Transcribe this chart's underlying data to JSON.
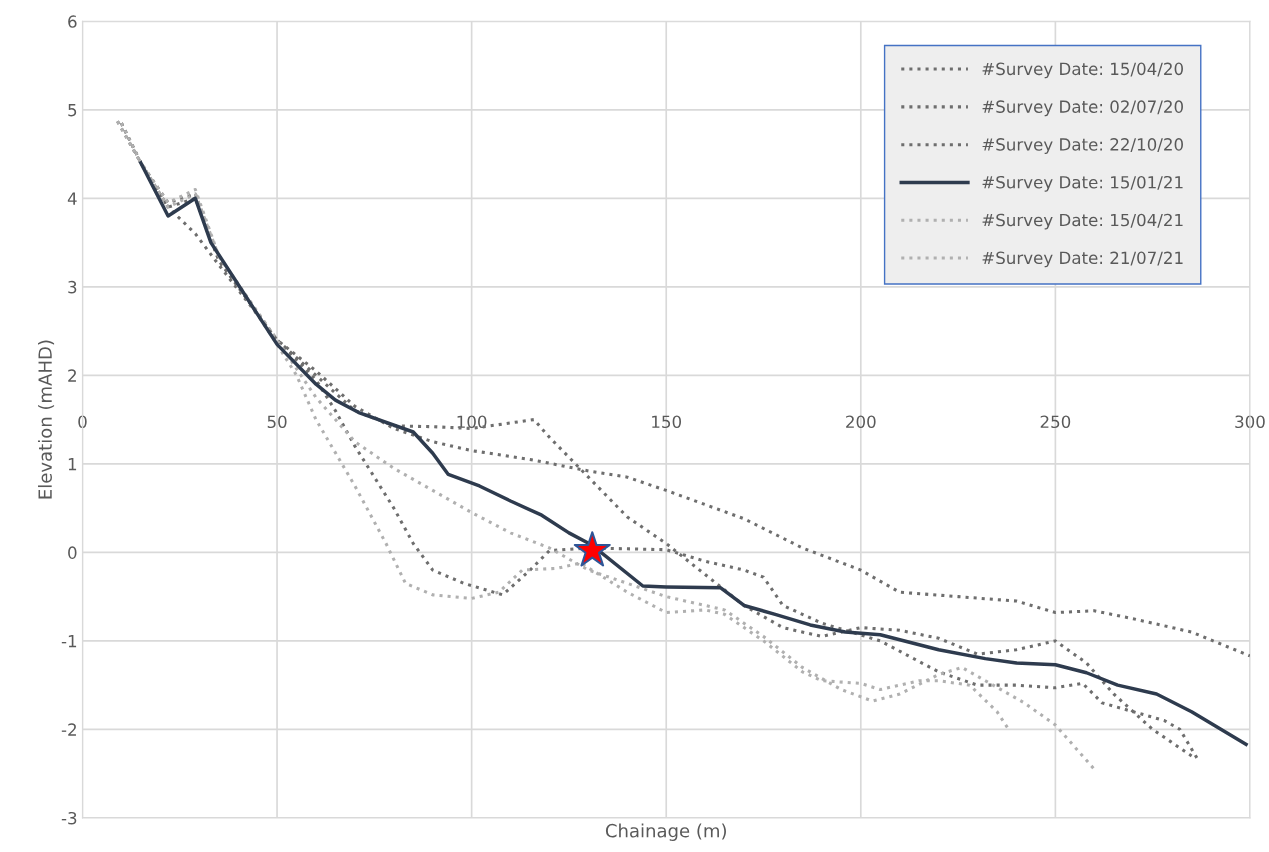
{
  "chart_data": {
    "type": "line",
    "xlabel": "Chainage (m)",
    "ylabel": "Elevation (mAHD)",
    "xlim": [
      0,
      300
    ],
    "xticks": [
      0,
      50,
      100,
      150,
      200,
      250,
      300
    ],
    "ylim": [
      -3,
      6
    ],
    "yticks": [
      -3,
      -2,
      -1,
      0,
      1,
      2,
      3,
      4,
      5,
      6
    ],
    "grid": true,
    "legend": "top right",
    "marker": "none",
    "series": [
      {
        "name": "#Survey Date: 15/04/20",
        "color": "#6e6e6e",
        "line_style": "dotted",
        "x": [
          9,
          15,
          22,
          29,
          35,
          50,
          60,
          70,
          80,
          90,
          100,
          115,
          130,
          140,
          150,
          170,
          185,
          200,
          210,
          225,
          240,
          250,
          260,
          270,
          285,
          300
        ],
        "values": [
          4.87,
          4.4,
          3.9,
          3.6,
          3.25,
          2.4,
          2.05,
          1.65,
          1.4,
          1.25,
          1.15,
          1.05,
          0.92,
          0.85,
          0.7,
          0.38,
          0.05,
          -0.2,
          -0.45,
          -0.5,
          -0.55,
          -0.68,
          -0.66,
          -0.75,
          -0.9,
          -1.17
        ]
      },
      {
        "name": "#Survey Date: 02/07/20",
        "color": "#6e6e6e",
        "line_style": "dotted",
        "x": [
          10,
          15,
          22,
          29,
          35,
          50,
          60,
          70,
          80,
          90,
          100,
          108,
          116,
          120,
          130,
          140,
          150,
          160,
          170,
          180,
          190,
          200,
          210,
          220,
          230,
          240,
          250,
          258,
          265,
          275,
          285
        ],
        "values": [
          4.85,
          4.4,
          3.95,
          4.05,
          3.3,
          2.4,
          2.0,
          1.6,
          1.43,
          1.42,
          1.4,
          1.45,
          1.5,
          1.3,
          0.85,
          0.4,
          0.1,
          -0.25,
          -0.6,
          -0.85,
          -0.95,
          -0.85,
          -0.88,
          -0.97,
          -1.15,
          -1.1,
          -1.0,
          -1.25,
          -1.6,
          -2.0,
          -2.3
        ]
      },
      {
        "name": "#Survey Date: 22/10/20",
        "color": "#6e6e6e",
        "line_style": "dotted",
        "x": [
          10,
          15,
          22,
          29,
          35,
          50,
          60,
          65,
          70,
          80,
          85,
          90,
          98,
          108,
          115,
          120,
          130,
          150,
          160,
          170,
          175,
          180,
          190,
          205,
          220,
          230,
          240,
          250,
          257,
          262,
          270,
          278,
          282,
          287
        ],
        "values": [
          4.85,
          4.4,
          3.9,
          4.0,
          3.3,
          2.4,
          1.95,
          1.6,
          1.2,
          0.5,
          0.1,
          -0.2,
          -0.35,
          -0.48,
          -0.2,
          0.02,
          0.05,
          0.03,
          -0.1,
          -0.2,
          -0.28,
          -0.6,
          -0.8,
          -1.0,
          -1.35,
          -1.5,
          -1.5,
          -1.53,
          -1.48,
          -1.7,
          -1.8,
          -1.9,
          -2.0,
          -2.37
        ]
      },
      {
        "name": "#Survey Date: 15/01/21",
        "color": "#2e3b4e",
        "line_style": "solid",
        "x": [
          15,
          22,
          29,
          33,
          50,
          60,
          65,
          71,
          85,
          90,
          94,
          102,
          110,
          118,
          125,
          131,
          144,
          150,
          164,
          170,
          178,
          187,
          196,
          205,
          220,
          232,
          240,
          250,
          258,
          266,
          276,
          285,
          299
        ],
        "values": [
          4.4,
          3.8,
          4.0,
          3.5,
          2.35,
          1.9,
          1.72,
          1.58,
          1.36,
          1.12,
          0.88,
          0.75,
          0.58,
          0.42,
          0.22,
          0.08,
          -0.38,
          -0.39,
          -0.4,
          -0.6,
          -0.7,
          -0.82,
          -0.9,
          -0.93,
          -1.1,
          -1.2,
          -1.25,
          -1.27,
          -1.36,
          -1.5,
          -1.6,
          -1.8,
          -2.17
        ]
      },
      {
        "name": "#Survey Date: 15/04/21",
        "color": "#b0b0b0",
        "line_style": "dotted",
        "x": [
          10,
          15,
          22,
          29,
          35,
          50,
          55,
          60,
          70,
          78,
          83,
          90,
          100,
          107,
          113,
          122,
          128,
          140,
          150,
          160,
          165,
          175,
          185,
          190,
          200,
          205,
          215,
          220,
          228,
          235,
          238
        ],
        "values": [
          4.85,
          4.4,
          3.95,
          4.1,
          3.35,
          2.35,
          2.0,
          1.5,
          0.75,
          0.1,
          -0.35,
          -0.48,
          -0.52,
          -0.45,
          -0.2,
          -0.18,
          -0.12,
          -0.45,
          -0.68,
          -0.65,
          -0.7,
          -1.0,
          -1.35,
          -1.45,
          -1.48,
          -1.55,
          -1.45,
          -1.45,
          -1.5,
          -1.8,
          -2.0
        ]
      },
      {
        "name": "#Survey Date: 21/07/21",
        "color": "#b0b0b0",
        "line_style": "dotted",
        "x": [
          9,
          15,
          22,
          29,
          35,
          50,
          60,
          70,
          80,
          90,
          100,
          110,
          120,
          130,
          140,
          150,
          165,
          175,
          185,
          195,
          203,
          210,
          220,
          226,
          232,
          242,
          250,
          260
        ],
        "values": [
          4.87,
          4.4,
          3.9,
          4.05,
          3.35,
          2.4,
          1.75,
          1.25,
          0.95,
          0.7,
          0.45,
          0.22,
          0.05,
          -0.2,
          -0.35,
          -0.5,
          -0.65,
          -0.95,
          -1.3,
          -1.55,
          -1.68,
          -1.6,
          -1.38,
          -1.3,
          -1.45,
          -1.7,
          -1.95,
          -2.45
        ]
      },
      {
        "type": "scatter",
        "marker": "star",
        "color": "#ff0000",
        "x": [
          131
        ],
        "values": [
          0.02
        ]
      }
    ]
  }
}
